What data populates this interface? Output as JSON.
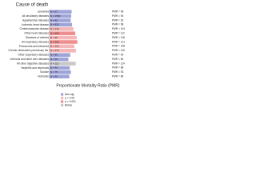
{
  "chart_data": {
    "type": "bar",
    "orientation": "horizontal",
    "title": "Cause of death",
    "x_label": "Proportionate Mortality Ratio (PMR)",
    "categories": [
      "Leukemia",
      "All circulatory diseases",
      "Hypertensive diseases",
      "Ischemic heart disease",
      "Cerebrovascular disease",
      "Other heart diseases",
      "Diseases of arteries",
      "All respiratory diseases",
      "Pneumonia and influenza",
      "Chronic obstructive pulmonary dis.",
      "Other respiratory diseases",
      "Cirrhosis and other liver diseases",
      "All other digestive diseases",
      "Nephritis and nephrosis",
      "Suicide",
      "Homicide"
    ],
    "values": [
      96,
      94,
      92,
      98,
      104,
      112,
      118,
      121,
      108,
      115,
      90,
      82,
      114,
      88,
      93,
      86
    ],
    "value_labels": [
      "PMR = 96",
      "PMR = 94",
      "PMR = 92",
      "PMR = 98",
      "PMR = 104",
      "PMR = 112",
      "PMR = 118",
      "PMR = 121",
      "PMR = 108",
      "PMR = 115",
      "PMR = 90",
      "PMR = 82",
      "PMR = 114",
      "PMR = 88",
      "PMR = 93",
      "PMR = 86"
    ],
    "n_labels": [
      "N = 27",
      "N = 1550",
      "N = 45",
      "N = 820",
      "N = 210",
      "N = 260",
      "N = 95",
      "N = 390",
      "N = 120",
      "N = 170",
      "N = 80",
      "N = 60",
      "N = 110",
      "N = 40",
      "N = 75",
      "N = 30"
    ],
    "significance": [
      0,
      0,
      0,
      0,
      1,
      2,
      1,
      2,
      1,
      1,
      0,
      0,
      3,
      0,
      0,
      0
    ],
    "legend": [
      {
        "name": "Non-sig",
        "color": "#9ea3d8"
      },
      {
        "name": "p < 0.05",
        "color": "#f4b6b6"
      },
      {
        "name": "p < 0.001",
        "color": "#ee8e8e"
      },
      {
        "name": "Below",
        "color": "#c8c8c8"
      }
    ],
    "xlim": [
      0,
      150
    ]
  }
}
